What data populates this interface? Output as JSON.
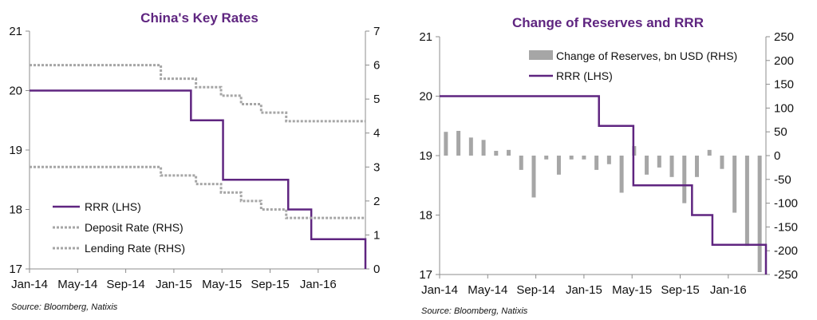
{
  "chart_data": [
    {
      "type": "line",
      "title": "China's Key Rates",
      "source": "Source: Bloomberg, Natixis",
      "xlabels": [
        "Jan-14",
        "May-14",
        "Sep-14",
        "Jan-15",
        "May-15",
        "Sep-15",
        "Jan-16"
      ],
      "ylim_left": [
        17,
        21
      ],
      "yticks_left": [
        "17",
        "18",
        "19",
        "20",
        "21"
      ],
      "ylim_right": [
        0,
        7
      ],
      "yticks_right": [
        "0",
        "1",
        "2",
        "3",
        "4",
        "5",
        "6",
        "7"
      ],
      "series": [
        {
          "name": "RRR (LHS)",
          "axis": "left",
          "color": "#5f2580",
          "style": "solid",
          "points": [
            [
              0,
              20
            ],
            [
              16.1,
              20
            ],
            [
              16.1,
              19.5
            ],
            [
              19.3,
              19.5
            ],
            [
              19.3,
              18.5
            ],
            [
              25.8,
              18.5
            ],
            [
              25.8,
              18
            ],
            [
              28.1,
              18
            ],
            [
              28.1,
              17.5
            ],
            [
              33.5,
              17.5
            ],
            [
              33.5,
              17
            ]
          ]
        },
        {
          "name": "Deposit Rate (RHS)",
          "axis": "right",
          "color": "#a6a6a6",
          "style": "dotted",
          "points": [
            [
              0,
              6
            ],
            [
              13.1,
              6
            ],
            [
              13.1,
              5.6
            ],
            [
              16.6,
              5.6
            ],
            [
              16.6,
              5.35
            ],
            [
              19.1,
              5.35
            ],
            [
              19.1,
              5.1
            ],
            [
              21.1,
              5.1
            ],
            [
              21.1,
              4.85
            ],
            [
              23.1,
              4.85
            ],
            [
              23.1,
              4.6
            ],
            [
              25.6,
              4.6
            ],
            [
              25.6,
              4.35
            ],
            [
              33.5,
              4.35
            ]
          ]
        },
        {
          "name": "Lending Rate (RHS)",
          "axis": "right",
          "color": "#a6a6a6",
          "style": "dotted",
          "points": [
            [
              0,
              3
            ],
            [
              13.1,
              3
            ],
            [
              13.1,
              2.75
            ],
            [
              16.6,
              2.75
            ],
            [
              16.6,
              2.5
            ],
            [
              19.1,
              2.5
            ],
            [
              19.1,
              2.25
            ],
            [
              21.1,
              2.25
            ],
            [
              21.1,
              2.0
            ],
            [
              23.1,
              2.0
            ],
            [
              23.1,
              1.75
            ],
            [
              25.6,
              1.75
            ],
            [
              25.6,
              1.5
            ],
            [
              33.5,
              1.5
            ]
          ]
        }
      ],
      "legend_position": "bottom-left"
    },
    {
      "type": "bar+line",
      "title": "Change of Reserves and RRR",
      "source": "Source: Bloomberg, Natixis",
      "xlabels": [
        "Jan-14",
        "May-14",
        "Sep-14",
        "Jan-15",
        "May-15",
        "Sep-15",
        "Jan-16"
      ],
      "ylim_left": [
        17,
        21
      ],
      "yticks_left": [
        "17",
        "18",
        "19",
        "20",
        "21"
      ],
      "ylim_right": [
        -250,
        250
      ],
      "yticks_right": [
        "-250",
        "-200",
        "-150",
        "-100",
        "-50",
        "0",
        "50",
        "100",
        "150",
        "200",
        "250"
      ],
      "bars": {
        "name": "Change of Reserves, bn USD (RHS)",
        "axis": "right",
        "color": "#a6a6a6",
        "values": [
          50,
          52,
          38,
          33,
          10,
          12,
          -30,
          -88,
          -8,
          -40,
          -8,
          -8,
          -30,
          -18,
          -78,
          20,
          -40,
          -25,
          -45,
          -100,
          -45,
          12,
          -28,
          -120,
          -190,
          -245
        ]
      },
      "line": {
        "name": "RRR (LHS)",
        "axis": "left",
        "color": "#5f2580",
        "points": [
          [
            0,
            20
          ],
          [
            12.5,
            20
          ],
          [
            12.5,
            19.5
          ],
          [
            15.2,
            19.5
          ],
          [
            15.2,
            18.5
          ],
          [
            19.8,
            18.5
          ],
          [
            19.8,
            18
          ],
          [
            21.4,
            18
          ],
          [
            21.4,
            17.5
          ],
          [
            25.6,
            17.5
          ],
          [
            25.6,
            17
          ]
        ]
      },
      "legend_position": "top-center"
    }
  ]
}
